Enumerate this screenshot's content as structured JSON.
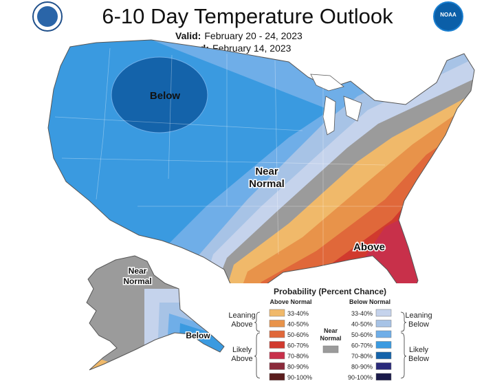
{
  "header": {
    "title": "6-10 Day Temperature Outlook",
    "valid_label": "Valid:",
    "valid_value": "February 20 - 24, 2023",
    "issued_label": "Issued:",
    "issued_value": "February 14, 2023",
    "left_seal": "Department of Commerce seal",
    "right_logo": "NOAA"
  },
  "map_labels": {
    "below_conus": "Below",
    "near_normal_conus_1": "Near",
    "near_normal_conus_2": "Normal",
    "above_conus": "Above",
    "near_normal_ak_1": "Near",
    "near_normal_ak_2": "Normal",
    "below_ak": "Below"
  },
  "legend": {
    "title": "Probability (Percent Chance)",
    "above_header": "Above Normal",
    "below_header": "Below Normal",
    "near_label_1": "Near",
    "near_label_2": "Normal",
    "leaning_above_1": "Leaning",
    "leaning_above_2": "Above",
    "likely_above_1": "Likely",
    "likely_above_2": "Above",
    "leaning_below_1": "Leaning",
    "leaning_below_2": "Below",
    "likely_below_1": "Likely",
    "likely_below_2": "Below",
    "above_items": [
      {
        "label": "33-40%",
        "color": "#f0b96a"
      },
      {
        "label": "40-50%",
        "color": "#e8934a"
      },
      {
        "label": "50-60%",
        "color": "#e0683a"
      },
      {
        "label": "60-70%",
        "color": "#d13a2e"
      },
      {
        "label": "70-80%",
        "color": "#c8304a"
      },
      {
        "label": "80-90%",
        "color": "#8a2a3a"
      },
      {
        "label": "90-100%",
        "color": "#5a1d1d"
      }
    ],
    "below_items": [
      {
        "label": "33-40%",
        "color": "#c5d3ec"
      },
      {
        "label": "40-50%",
        "color": "#a7c3e6"
      },
      {
        "label": "50-60%",
        "color": "#6faee8"
      },
      {
        "label": "60-70%",
        "color": "#3a9ae0"
      },
      {
        "label": "70-80%",
        "color": "#1463aa"
      },
      {
        "label": "80-90%",
        "color": "#2a2a7a"
      },
      {
        "label": "90-100%",
        "color": "#1a1a4a"
      }
    ],
    "near_color": "#9b9b9b"
  }
}
